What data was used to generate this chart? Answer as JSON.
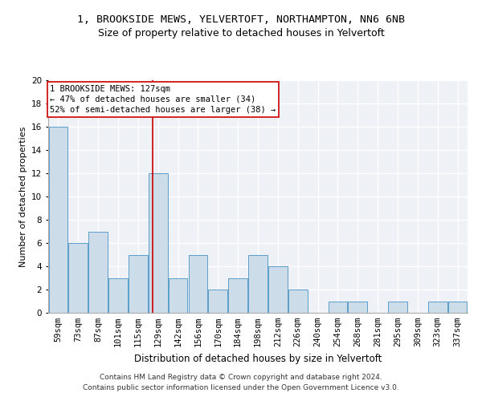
{
  "title1": "1, BROOKSIDE MEWS, YELVERTOFT, NORTHAMPTON, NN6 6NB",
  "title2": "Size of property relative to detached houses in Yelvertoft",
  "xlabel": "Distribution of detached houses by size in Yelvertoft",
  "ylabel": "Number of detached properties",
  "categories": [
    "59sqm",
    "73sqm",
    "87sqm",
    "101sqm",
    "115sqm",
    "129sqm",
    "142sqm",
    "156sqm",
    "170sqm",
    "184sqm",
    "198sqm",
    "212sqm",
    "226sqm",
    "240sqm",
    "254sqm",
    "268sqm",
    "281sqm",
    "295sqm",
    "309sqm",
    "323sqm",
    "337sqm"
  ],
  "values": [
    16,
    6,
    7,
    3,
    5,
    12,
    3,
    5,
    2,
    3,
    5,
    4,
    2,
    0,
    1,
    1,
    0,
    1,
    0,
    1,
    1
  ],
  "bar_color": "#ccdce8",
  "bar_edge_color": "#5b9ec9",
  "ref_line_x": 4.72,
  "annotation_line1": "1 BROOKSIDE MEWS: 127sqm",
  "annotation_line2": "← 47% of detached houses are smaller (34)",
  "annotation_line3": "52% of semi-detached houses are larger (38) →",
  "box_color": "#cc0000",
  "ylim": [
    0,
    20
  ],
  "yticks": [
    0,
    2,
    4,
    6,
    8,
    10,
    12,
    14,
    16,
    18,
    20
  ],
  "background_color": "#eef2f7",
  "title1_fontsize": 9.5,
  "title2_fontsize": 9,
  "xlabel_fontsize": 8.5,
  "ylabel_fontsize": 8,
  "tick_fontsize": 7.5,
  "annotation_fontsize": 7.5,
  "footer_line1": "Contains HM Land Registry data © Crown copyright and database right 2024.",
  "footer_line2": "Contains public sector information licensed under the Open Government Licence v3.0.",
  "footer_fontsize": 6.5
}
